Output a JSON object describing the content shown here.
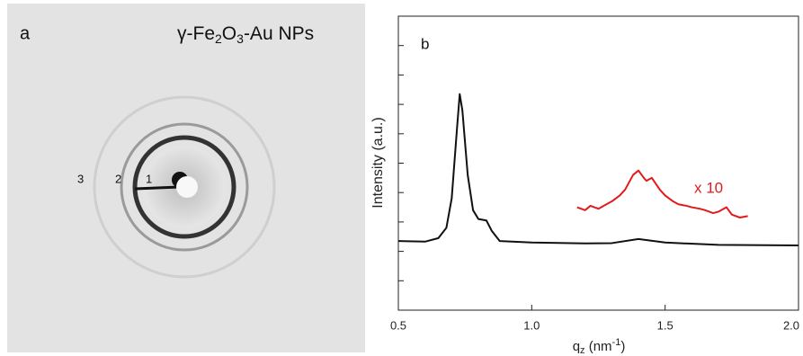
{
  "panel_a": {
    "label": "a",
    "title": [
      "γ-Fe",
      "2",
      "O",
      "3",
      "-Au NPs"
    ],
    "ring_labels": [
      "3",
      "2",
      "1"
    ]
  },
  "chart_data": {
    "type": "line",
    "panel_label": "b",
    "x_label": [
      "q",
      "z",
      " (nm",
      "-1",
      ")"
    ],
    "y_label": "Intensity (a.u.)",
    "xlim": [
      0.5,
      2.0
    ],
    "xticks": [
      0.5,
      {
        "value": 1,
        "label": "1.0"
      },
      1.5,
      {
        "value": 2,
        "label": "2.0"
      }
    ],
    "ylim": [
      0,
      10
    ],
    "yticks": [
      1,
      2,
      3,
      4,
      5,
      6,
      7,
      8,
      9
    ],
    "annotation": {
      "text": "x 10",
      "color": "#e31a1c"
    },
    "series": [
      {
        "color": "#111111",
        "x": [
          0.5,
          0.6,
          0.65,
          0.68,
          0.7,
          0.72,
          0.73,
          0.74,
          0.76,
          0.78,
          0.8,
          0.83,
          0.85,
          0.88,
          1.0,
          1.2,
          1.3,
          1.4,
          1.5,
          1.7,
          2.0
        ],
        "values": [
          2.35,
          2.33,
          2.45,
          2.8,
          3.8,
          6.2,
          7.35,
          6.8,
          4.6,
          3.4,
          3.1,
          3.05,
          2.7,
          2.35,
          2.3,
          2.27,
          2.28,
          2.42,
          2.3,
          2.22,
          2.2
        ]
      },
      {
        "color": "#e31a1c",
        "x": [
          1.17,
          1.2,
          1.22,
          1.25,
          1.28,
          1.3,
          1.33,
          1.35,
          1.38,
          1.4,
          1.42,
          1.43,
          1.45,
          1.48,
          1.5,
          1.53,
          1.55,
          1.58,
          1.6,
          1.63,
          1.65,
          1.68,
          1.7,
          1.73,
          1.75,
          1.78,
          1.81
        ],
        "values": [
          3.5,
          3.4,
          3.55,
          3.45,
          3.6,
          3.7,
          3.9,
          4.1,
          4.6,
          4.75,
          4.5,
          4.4,
          4.5,
          4.1,
          3.9,
          3.7,
          3.6,
          3.55,
          3.5,
          3.45,
          3.4,
          3.3,
          3.35,
          3.5,
          3.25,
          3.15,
          3.2
        ]
      }
    ]
  }
}
